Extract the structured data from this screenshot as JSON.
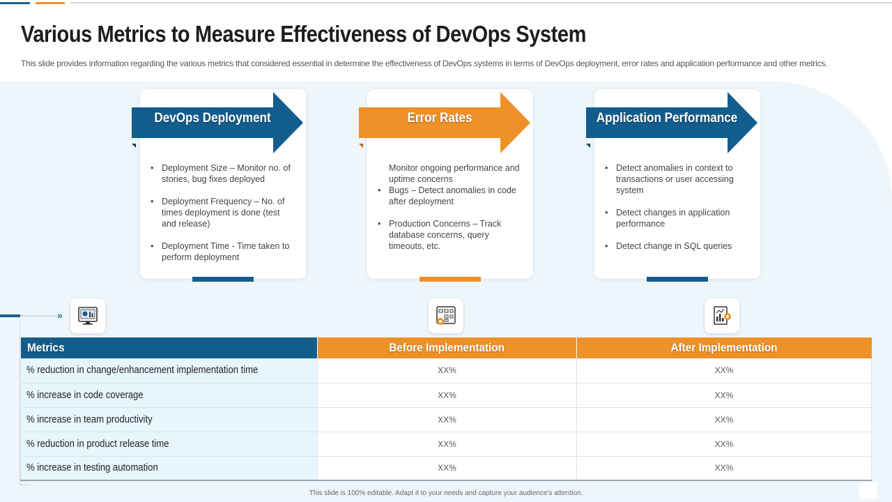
{
  "colors": {
    "blue": "#135d8c",
    "orange": "#ee9128",
    "light_bg": "#eef6fb"
  },
  "header": {
    "title": "Various Metrics to Measure Effectiveness of DevOps System",
    "subtitle": "This slide provides information regarding the various metrics that considered essential in determine the effectiveness of DevOps systems in terms of DevOps deployment, error rates and application performance and other metrics."
  },
  "cards": [
    {
      "title": "DevOps Deployment",
      "bullets": [
        "Deployment Size – Monitor no. of stories, bug fixes deployed",
        "Deployment Frequency – No. of times deployment is done (test and release)",
        "Deployment Time - Time taken to perform deployment"
      ]
    },
    {
      "title": "Error Rates",
      "intro": "Monitor ongoing performance and uptime concerns",
      "bullets": [
        "Bugs – Detect anomalies in code after deployment",
        "Production Concerns – Track database concerns, query timeouts, etc."
      ]
    },
    {
      "title": "Application Performance",
      "bullets": [
        "Detect anomalies in context to transactions or user accessing system",
        "Detect changes in application performance",
        "Detect change in SQL queries"
      ]
    }
  ],
  "icons": [
    "dashboard-monitor-icon",
    "workflow-gear-icon",
    "report-chart-gear-icon"
  ],
  "table": {
    "headers": [
      "Metrics",
      "Before Implementation",
      "After Implementation"
    ],
    "rows": [
      [
        "% reduction in change/enhancement implementation time",
        "XX%",
        "XX%"
      ],
      [
        "% increase in code coverage",
        "XX%",
        "XX%"
      ],
      [
        "% increase in team productivity",
        "XX%",
        "XX%"
      ],
      [
        "% reduction in product release time",
        "XX%",
        "XX%"
      ],
      [
        "% increase in testing automation",
        "XX%",
        "XX%"
      ]
    ]
  },
  "footer": "This slide is 100% editable. Adapt it to your needs and capture your audience's attention."
}
